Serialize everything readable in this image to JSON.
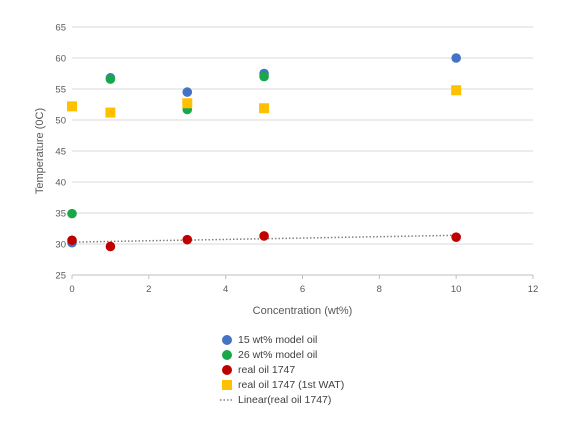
{
  "chart_data": {
    "type": "scatter",
    "title": "",
    "xlabel": "Concentration (wt%)",
    "ylabel": "Temperature (0C)",
    "xlim": [
      0,
      12
    ],
    "ylim": [
      25,
      65
    ],
    "xticks": [
      0,
      2,
      4,
      6,
      8,
      10,
      12
    ],
    "yticks": [
      25,
      30,
      35,
      40,
      45,
      50,
      55,
      60,
      65
    ],
    "grid": "horizontal",
    "legend_position": "bottom",
    "series": [
      {
        "name": "15 wt% model oil",
        "marker": "circle",
        "color": "#4472C4",
        "points": [
          [
            0,
            30.2
          ],
          [
            1,
            56.8
          ],
          [
            3,
            54.5
          ],
          [
            5,
            57.5
          ],
          [
            10,
            60.0
          ]
        ]
      },
      {
        "name": "26 wt% model oil",
        "marker": "circle",
        "color": "#19A74B",
        "points": [
          [
            0,
            34.9
          ],
          [
            1,
            56.6
          ],
          [
            3,
            51.7
          ],
          [
            5,
            57.0
          ]
        ]
      },
      {
        "name": "real oil 1747",
        "marker": "circle",
        "color": "#C00000",
        "points": [
          [
            0,
            30.6
          ],
          [
            1,
            29.6
          ],
          [
            3,
            30.7
          ],
          [
            5,
            31.3
          ],
          [
            10,
            31.1
          ]
        ]
      },
      {
        "name": "real oil 1747 (1st WAT)",
        "marker": "square",
        "color": "#FFC000",
        "points": [
          [
            0,
            52.2
          ],
          [
            1,
            51.2
          ],
          [
            3,
            52.7
          ],
          [
            5,
            51.9
          ],
          [
            10,
            54.8
          ]
        ]
      }
    ],
    "trendline": {
      "name": "Linear(real oil 1747)",
      "color": "#808080",
      "style": "dotted",
      "x": [
        0,
        10
      ],
      "y": [
        30.3,
        31.4
      ]
    }
  }
}
